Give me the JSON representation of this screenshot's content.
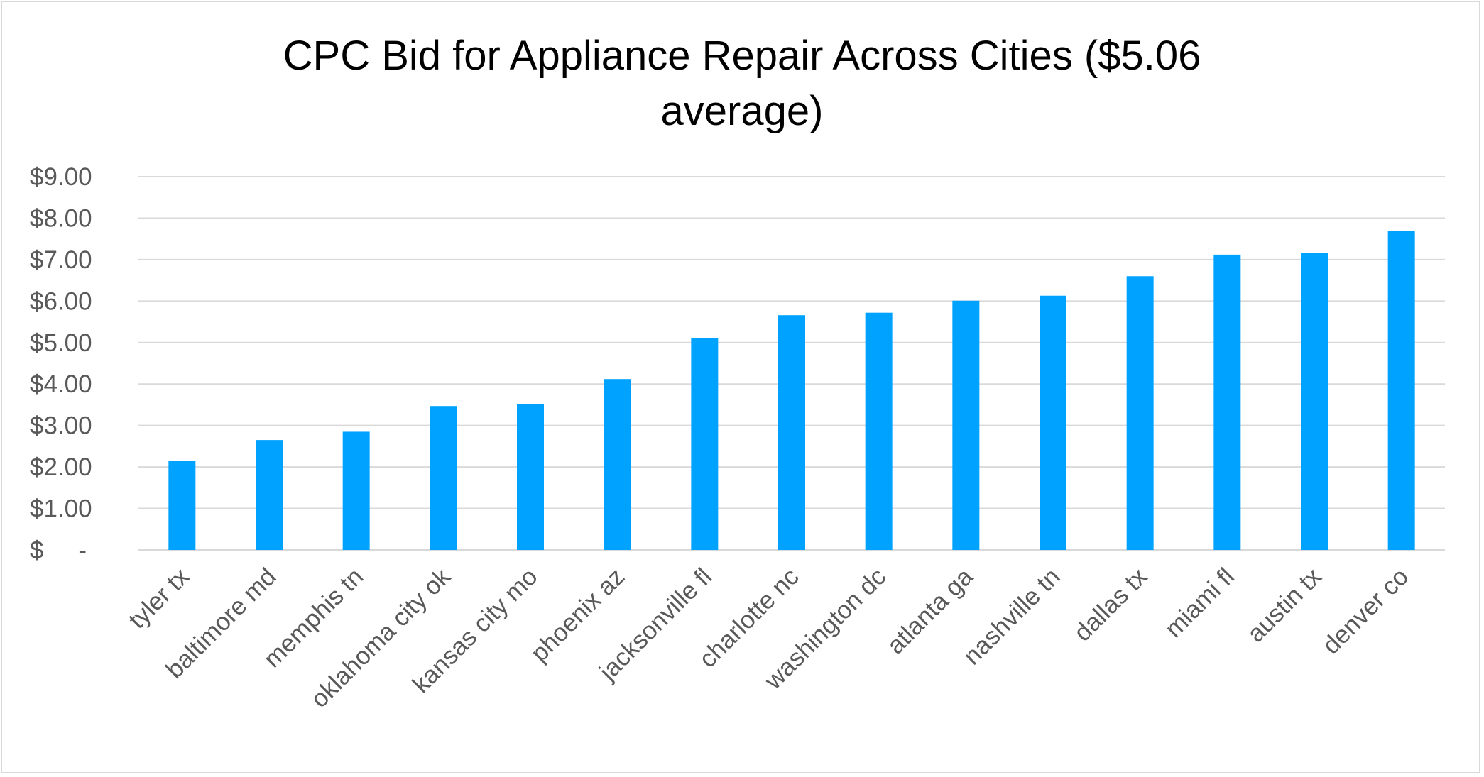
{
  "chart_data": {
    "type": "bar",
    "title_lines": [
      "CPC Bid for Appliance Repair Across Cities ($5.06",
      "average)"
    ],
    "xlabel": "",
    "ylabel": "",
    "categories": [
      "tyler tx",
      "baltimore md",
      "memphis tn",
      "oklahoma city ok",
      "kansas city mo",
      "phoenix az",
      "jacksonville fl",
      "charlotte nc",
      "washington dc",
      "atlanta ga",
      "nashville tn",
      "dallas tx",
      "miami fl",
      "austin tx",
      "denver co"
    ],
    "values": [
      2.15,
      2.65,
      2.85,
      3.47,
      3.52,
      4.12,
      5.11,
      5.66,
      5.72,
      6.01,
      6.13,
      6.6,
      7.12,
      7.16,
      7.7
    ],
    "ylim": [
      0,
      9
    ],
    "yticks": [
      {
        "value": 0,
        "label": "$-"
      },
      {
        "value": 1,
        "label": "$1.00"
      },
      {
        "value": 2,
        "label": "$2.00"
      },
      {
        "value": 3,
        "label": "$3.00"
      },
      {
        "value": 4,
        "label": "$4.00"
      },
      {
        "value": 5,
        "label": "$5.00"
      },
      {
        "value": 6,
        "label": "$6.00"
      },
      {
        "value": 7,
        "label": "$7.00"
      },
      {
        "value": 8,
        "label": "$8.00"
      },
      {
        "value": 9,
        "label": "$9.00"
      }
    ],
    "grid": true,
    "legend": "none",
    "bar_color": "#00a2ff",
    "grid_color": "#d9d9d9",
    "label_color": "#595959"
  }
}
